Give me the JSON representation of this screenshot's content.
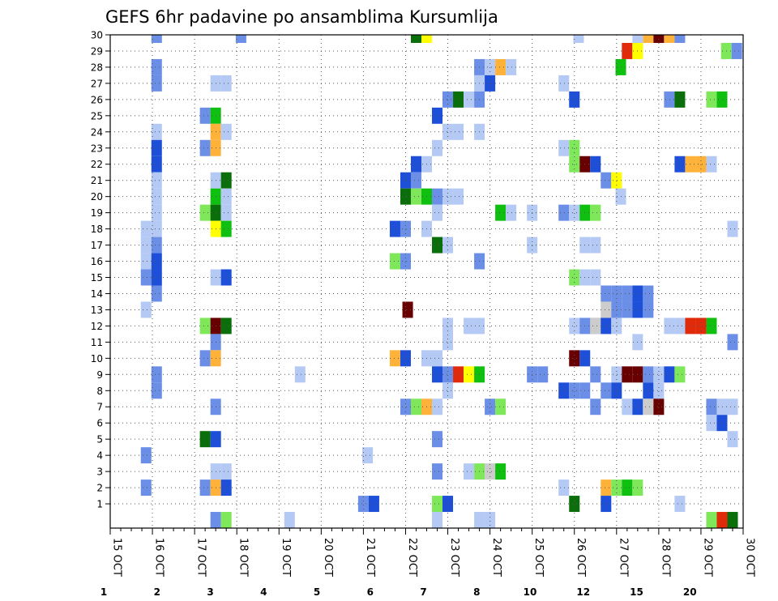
{
  "chart_data": {
    "type": "heatmap",
    "title": "GEFS 6hr padavine po ansamblima Kursumlija",
    "x_tick_labels": [
      "15 OCT",
      "16 OCT",
      "17 OCT",
      "18 OCT",
      "19 OCT",
      "20 OCT",
      "21 OCT",
      "22 OCT",
      "23 OCT",
      "24 OCT",
      "25 OCT",
      "26 OCT",
      "27 OCT",
      "28 OCT",
      "29 OCT",
      "30 OCT"
    ],
    "y_range": [
      0,
      30
    ],
    "y_ticks": [
      1,
      2,
      3,
      4,
      5,
      6,
      7,
      8,
      9,
      10,
      11,
      12,
      13,
      14,
      15,
      16,
      17,
      18,
      19,
      20,
      21,
      22,
      23,
      24,
      25,
      26,
      27,
      28,
      29,
      30
    ],
    "time_steps_per_day": 4,
    "grid": true,
    "legend": {
      "placement": "bottom",
      "colors": [
        "#b5c9f5",
        "#6b8fe6",
        "#1d4fd8",
        "#7ee85a",
        "#10c010",
        "#0a6e0a",
        "#ffff00",
        "#ffb23a",
        "#f57a10",
        "#e02a0a",
        "#b00c0c",
        "#680000"
      ],
      "labels": [
        "1",
        "2",
        "3",
        "4",
        "5",
        "6",
        "7",
        "8",
        "10",
        "12",
        "15",
        "20"
      ]
    },
    "cells": [
      [
        1.1,
        30,
        2
      ],
      [
        3.1,
        30,
        2
      ],
      [
        7.25,
        30,
        6
      ],
      [
        7.5,
        30,
        7
      ],
      [
        11.1,
        30,
        1
      ],
      [
        12.5,
        30,
        1
      ],
      [
        12.75,
        30,
        8
      ],
      [
        13.0,
        30,
        12
      ],
      [
        13.25,
        30,
        8
      ],
      [
        13.5,
        30,
        2
      ],
      [
        12.25,
        29,
        10
      ],
      [
        12.5,
        29,
        7
      ],
      [
        14.6,
        29,
        4
      ],
      [
        14.85,
        29,
        2
      ],
      [
        1.1,
        28,
        2
      ],
      [
        8.75,
        28,
        2
      ],
      [
        9.0,
        28,
        1
      ],
      [
        9.25,
        28,
        8
      ],
      [
        9.5,
        28,
        1
      ],
      [
        12.1,
        28,
        5
      ],
      [
        1.1,
        27,
        2
      ],
      [
        2.5,
        27,
        1
      ],
      [
        2.75,
        27,
        1
      ],
      [
        8.75,
        27,
        1
      ],
      [
        9.0,
        27,
        3
      ],
      [
        10.75,
        27,
        1
      ],
      [
        8.75,
        26,
        2
      ],
      [
        8.0,
        26,
        2
      ],
      [
        8.25,
        26,
        6
      ],
      [
        8.5,
        26,
        1
      ],
      [
        11.0,
        26,
        3
      ],
      [
        13.25,
        26,
        2
      ],
      [
        13.5,
        26,
        6
      ],
      [
        14.25,
        26,
        4
      ],
      [
        14.5,
        26,
        5
      ],
      [
        2.25,
        25,
        2
      ],
      [
        2.5,
        25,
        5
      ],
      [
        7.75,
        25,
        3
      ],
      [
        1.1,
        24,
        1
      ],
      [
        2.5,
        24,
        8
      ],
      [
        2.75,
        24,
        1
      ],
      [
        8.0,
        24,
        1
      ],
      [
        8.25,
        24,
        1
      ],
      [
        8.75,
        24,
        1
      ],
      [
        1.1,
        23,
        3
      ],
      [
        2.25,
        23,
        2
      ],
      [
        2.5,
        23,
        8
      ],
      [
        7.75,
        23,
        1
      ],
      [
        11.0,
        23,
        4
      ],
      [
        10.75,
        23,
        1
      ],
      [
        1.1,
        22,
        3
      ],
      [
        7.25,
        22,
        3
      ],
      [
        7.5,
        22,
        1
      ],
      [
        11.0,
        22,
        4
      ],
      [
        11.25,
        22,
        12
      ],
      [
        11.5,
        22,
        3
      ],
      [
        13.5,
        22,
        3
      ],
      [
        13.75,
        22,
        8
      ],
      [
        14.0,
        22,
        8
      ],
      [
        14.25,
        22,
        1
      ],
      [
        1.1,
        21,
        1
      ],
      [
        2.5,
        21,
        1
      ],
      [
        2.75,
        21,
        6
      ],
      [
        7.0,
        21,
        3
      ],
      [
        7.25,
        21,
        2
      ],
      [
        11.75,
        21,
        2
      ],
      [
        12.0,
        21,
        7
      ],
      [
        1.1,
        20,
        1
      ],
      [
        2.5,
        20,
        5
      ],
      [
        2.75,
        20,
        1
      ],
      [
        7.0,
        20,
        6
      ],
      [
        7.25,
        20,
        4
      ],
      [
        7.5,
        20,
        5
      ],
      [
        7.75,
        20,
        2
      ],
      [
        8.0,
        20,
        1
      ],
      [
        8.25,
        20,
        1
      ],
      [
        12.1,
        20,
        1
      ],
      [
        1.1,
        19,
        1
      ],
      [
        2.25,
        19,
        4
      ],
      [
        2.5,
        19,
        6
      ],
      [
        2.75,
        19,
        1
      ],
      [
        7.75,
        19,
        1
      ],
      [
        9.25,
        19,
        5
      ],
      [
        9.5,
        19,
        1
      ],
      [
        10.0,
        19,
        1
      ],
      [
        10.75,
        19,
        2
      ],
      [
        11.0,
        19,
        1
      ],
      [
        11.25,
        19,
        5
      ],
      [
        11.5,
        19,
        4
      ],
      [
        0.85,
        18,
        1
      ],
      [
        1.1,
        18,
        1
      ],
      [
        2.5,
        18,
        7
      ],
      [
        2.75,
        18,
        5
      ],
      [
        6.75,
        18,
        3
      ],
      [
        7.0,
        18,
        2
      ],
      [
        7.5,
        18,
        1
      ],
      [
        14.75,
        18,
        1
      ],
      [
        0.85,
        17,
        1
      ],
      [
        1.1,
        17,
        2
      ],
      [
        7.75,
        17,
        6
      ],
      [
        8.0,
        17,
        1
      ],
      [
        10.0,
        17,
        1
      ],
      [
        11.25,
        17,
        1
      ],
      [
        11.5,
        17,
        1
      ],
      [
        0.85,
        16,
        1
      ],
      [
        1.1,
        16,
        3
      ],
      [
        6.75,
        16,
        4
      ],
      [
        7.0,
        16,
        2
      ],
      [
        8.75,
        16,
        2
      ],
      [
        0.85,
        15,
        2
      ],
      [
        1.1,
        15,
        3
      ],
      [
        2.5,
        15,
        1
      ],
      [
        2.75,
        15,
        3
      ],
      [
        11.0,
        15,
        4
      ],
      [
        11.25,
        15,
        1
      ],
      [
        11.5,
        15,
        1
      ],
      [
        1.1,
        14,
        2
      ],
      [
        11.75,
        14,
        2
      ],
      [
        12.0,
        14,
        2
      ],
      [
        12.25,
        14,
        2
      ],
      [
        12.5,
        14,
        3
      ],
      [
        12.75,
        14,
        2
      ],
      [
        0.85,
        13,
        1
      ],
      [
        7.05,
        13,
        12
      ],
      [
        11.75,
        13,
        13
      ],
      [
        12.0,
        13,
        2
      ],
      [
        12.25,
        13,
        2
      ],
      [
        12.5,
        13,
        3
      ],
      [
        12.75,
        13,
        2
      ],
      [
        2.25,
        12,
        4
      ],
      [
        2.5,
        12,
        12
      ],
      [
        2.75,
        12,
        6
      ],
      [
        8.0,
        12,
        1
      ],
      [
        8.5,
        12,
        1
      ],
      [
        8.75,
        12,
        1
      ],
      [
        11.0,
        12,
        1
      ],
      [
        11.5,
        12,
        2
      ],
      [
        11.25,
        12,
        2
      ],
      [
        11.5,
        12,
        13
      ],
      [
        11.75,
        12,
        3
      ],
      [
        12.0,
        12,
        1
      ],
      [
        13.25,
        12,
        1
      ],
      [
        13.5,
        12,
        1
      ],
      [
        13.75,
        12,
        10
      ],
      [
        14.0,
        12,
        10
      ],
      [
        14.25,
        12,
        5
      ],
      [
        2.5,
        11,
        2
      ],
      [
        8.0,
        11,
        1
      ],
      [
        12.5,
        11,
        1
      ],
      [
        14.75,
        11,
        2
      ],
      [
        2.25,
        10,
        2
      ],
      [
        2.5,
        10,
        8
      ],
      [
        6.75,
        10,
        8
      ],
      [
        7.0,
        10,
        3
      ],
      [
        7.5,
        10,
        1
      ],
      [
        7.75,
        10,
        1
      ],
      [
        11.0,
        10,
        12
      ],
      [
        11.25,
        10,
        3
      ],
      [
        1.1,
        9,
        2
      ],
      [
        4.5,
        9,
        1
      ],
      [
        7.75,
        9,
        3
      ],
      [
        8.0,
        9,
        2
      ],
      [
        8.25,
        9,
        10
      ],
      [
        8.5,
        9,
        7
      ],
      [
        8.75,
        9,
        5
      ],
      [
        10.0,
        9,
        2
      ],
      [
        10.25,
        9,
        2
      ],
      [
        11.5,
        9,
        2
      ],
      [
        12.0,
        9,
        1
      ],
      [
        12.25,
        9,
        12
      ],
      [
        12.5,
        9,
        12
      ],
      [
        12.75,
        9,
        2
      ],
      [
        13.0,
        9,
        1
      ],
      [
        13.25,
        9,
        3
      ],
      [
        13.5,
        9,
        4
      ],
      [
        1.1,
        8,
        2
      ],
      [
        8.0,
        8,
        1
      ],
      [
        10.75,
        8,
        3
      ],
      [
        11.0,
        8,
        2
      ],
      [
        11.25,
        8,
        2
      ],
      [
        11.75,
        8,
        2
      ],
      [
        12.0,
        8,
        3
      ],
      [
        12.75,
        8,
        3
      ],
      [
        13.0,
        8,
        1
      ],
      [
        2.5,
        7,
        2
      ],
      [
        7.0,
        7,
        2
      ],
      [
        7.25,
        7,
        4
      ],
      [
        7.5,
        7,
        8
      ],
      [
        7.75,
        7,
        1
      ],
      [
        9.0,
        7,
        2
      ],
      [
        9.25,
        7,
        4
      ],
      [
        11.5,
        7,
        2
      ],
      [
        12.25,
        7,
        1
      ],
      [
        12.5,
        7,
        3
      ],
      [
        12.75,
        7,
        13
      ],
      [
        13.0,
        7,
        12
      ],
      [
        14.25,
        7,
        2
      ],
      [
        14.5,
        7,
        1
      ],
      [
        14.75,
        7,
        1
      ],
      [
        14.25,
        6,
        1
      ],
      [
        14.5,
        6,
        3
      ],
      [
        2.25,
        5,
        6
      ],
      [
        2.5,
        5,
        3
      ],
      [
        7.75,
        5,
        2
      ],
      [
        14.75,
        5,
        1
      ],
      [
        0.85,
        4,
        2
      ],
      [
        6.1,
        4,
        1
      ],
      [
        2.5,
        3,
        1
      ],
      [
        2.75,
        3,
        1
      ],
      [
        7.75,
        3,
        2
      ],
      [
        8.5,
        3,
        1
      ],
      [
        8.75,
        3,
        4
      ],
      [
        9.0,
        3,
        13
      ],
      [
        9.25,
        3,
        5
      ],
      [
        0.85,
        2,
        2
      ],
      [
        2.25,
        2,
        2
      ],
      [
        2.5,
        2,
        8
      ],
      [
        2.75,
        2,
        3
      ],
      [
        10.75,
        2,
        1
      ],
      [
        11.75,
        2,
        8
      ],
      [
        12.0,
        2,
        4
      ],
      [
        12.25,
        2,
        5
      ],
      [
        12.5,
        2,
        4
      ],
      [
        6.0,
        1,
        2
      ],
      [
        6.25,
        1,
        3
      ],
      [
        7.75,
        1,
        4
      ],
      [
        8.0,
        1,
        3
      ],
      [
        11.0,
        1,
        6
      ],
      [
        11.75,
        1,
        3
      ],
      [
        13.5,
        1,
        1
      ],
      [
        2.5,
        0,
        2
      ],
      [
        2.75,
        0,
        4
      ],
      [
        4.25,
        0,
        1
      ],
      [
        7.75,
        0,
        1
      ],
      [
        8.75,
        0,
        1
      ],
      [
        9.0,
        0,
        1
      ],
      [
        14.25,
        0,
        4
      ],
      [
        14.5,
        0,
        10
      ],
      [
        14.75,
        0,
        6
      ]
    ]
  }
}
